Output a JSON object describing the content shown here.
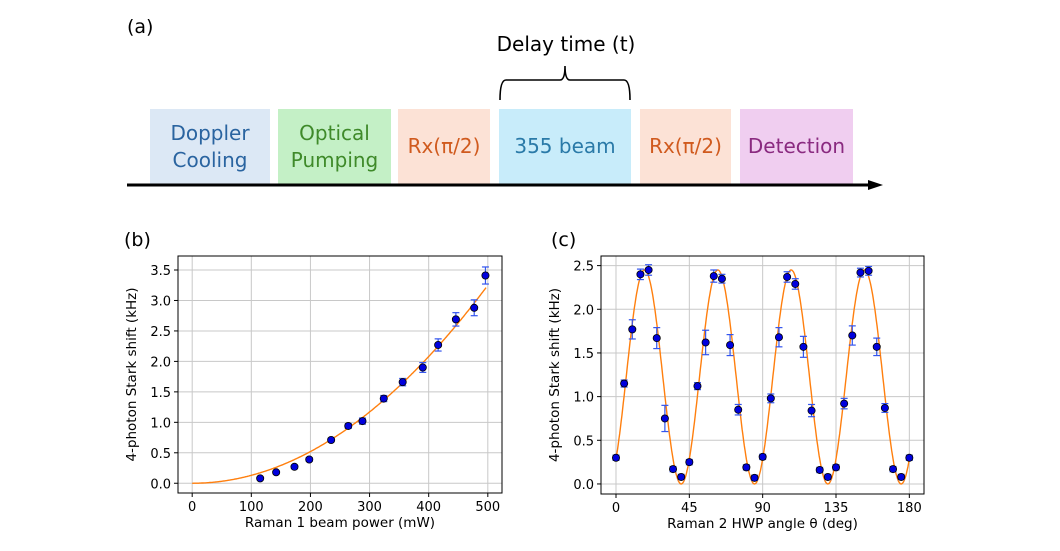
{
  "panel_a": {
    "label": "(a)",
    "delay_label": "Delay time (t)",
    "boxes": [
      {
        "text": "Doppler\nCooling",
        "bg": "#dce8f5",
        "color": "#2a64a0"
      },
      {
        "text": "Optical\nPumping",
        "bg": "#c4f0c6",
        "color": "#3f8a2a"
      },
      {
        "text": "Rx(π/2)",
        "bg": "#fce2d6",
        "color": "#d05a1e"
      },
      {
        "text": "355 beam",
        "bg": "#c8ecfa",
        "color": "#2a7aa8"
      },
      {
        "text": "Rx(π/2)",
        "bg": "#fce2d6",
        "color": "#d05a1e"
      },
      {
        "text": "Detection",
        "bg": "#f0cef0",
        "color": "#8a2a80"
      }
    ]
  },
  "chart_data": [
    {
      "panel_label": "(b)",
      "type": "scatter",
      "xlabel": "Raman 1 beam power (mW)",
      "ylabel": "4-photon Stark shift (kHz)",
      "xlim": [
        -24,
        524
      ],
      "ylim": [
        -0.16,
        3.73
      ],
      "xticks": [
        0,
        100,
        200,
        300,
        400,
        500
      ],
      "yticks": [
        0.0,
        0.5,
        1.0,
        1.5,
        2.0,
        2.5,
        3.0,
        3.5
      ],
      "ytick_decimals": 1,
      "grid": true,
      "x": [
        115,
        142,
        173,
        198,
        235,
        264,
        288,
        324,
        356,
        390,
        416,
        446,
        477,
        496
      ],
      "y": [
        0.08,
        0.18,
        0.27,
        0.39,
        0.71,
        0.94,
        1.02,
        1.39,
        1.66,
        1.9,
        2.27,
        2.69,
        2.88,
        3.41
      ],
      "yerr": [
        0.02,
        0.02,
        0.03,
        0.03,
        0.03,
        0.04,
        0.05,
        0.05,
        0.06,
        0.08,
        0.1,
        0.11,
        0.13,
        0.14
      ],
      "fit": {
        "type": "quadratic",
        "a": 1.3e-05,
        "x_range": [
          0,
          497
        ]
      },
      "colors": {
        "points": "#0000dd",
        "errorbar": "#3355ee",
        "fit": "#ff7f0e"
      }
    },
    {
      "panel_label": "(c)",
      "type": "scatter",
      "xlabel": "Raman 2 HWP angle θ (deg)",
      "ylabel": "4-photon Stark shift (kHz)",
      "xlim": [
        -9.2,
        189
      ],
      "ylim": [
        -0.115,
        2.61
      ],
      "xticks": [
        0,
        45,
        90,
        135,
        180
      ],
      "yticks": [
        0.0,
        0.5,
        1.0,
        1.5,
        2.0,
        2.5
      ],
      "ytick_decimals": 1,
      "grid": true,
      "x": [
        0,
        5,
        10,
        15,
        20,
        25,
        30,
        35,
        40,
        45,
        50,
        55,
        60,
        65,
        70,
        75,
        80,
        85,
        90,
        95,
        100,
        105,
        110,
        115,
        120,
        125,
        130,
        135,
        140,
        145,
        150,
        155,
        160,
        165,
        170,
        175,
        180
      ],
      "y": [
        0.3,
        1.15,
        1.77,
        2.4,
        2.45,
        1.67,
        0.75,
        0.17,
        0.08,
        0.25,
        1.12,
        1.62,
        2.38,
        2.35,
        1.59,
        0.85,
        0.19,
        0.07,
        0.31,
        0.98,
        1.68,
        2.37,
        2.29,
        1.57,
        0.84,
        0.16,
        0.08,
        0.19,
        0.92,
        1.7,
        2.42,
        2.44,
        1.57,
        0.87,
        0.17,
        0.08,
        0.3
      ],
      "yerr": [
        0.03,
        0.04,
        0.11,
        0.06,
        0.06,
        0.12,
        0.15,
        0.03,
        0.03,
        0.03,
        0.04,
        0.14,
        0.07,
        0.05,
        0.12,
        0.06,
        0.03,
        0.03,
        0.03,
        0.05,
        0.11,
        0.06,
        0.06,
        0.12,
        0.07,
        0.03,
        0.03,
        0.03,
        0.06,
        0.11,
        0.05,
        0.05,
        0.1,
        0.05,
        0.03,
        0.03,
        0.03
      ],
      "fit": {
        "type": "sin2",
        "amplitude": 2.45,
        "period_deg": 45,
        "min_at_deg": 40,
        "x_range": [
          0,
          180
        ]
      },
      "colors": {
        "points": "#0000dd",
        "errorbar": "#3355ee",
        "fit": "#ff7f0e"
      }
    }
  ]
}
